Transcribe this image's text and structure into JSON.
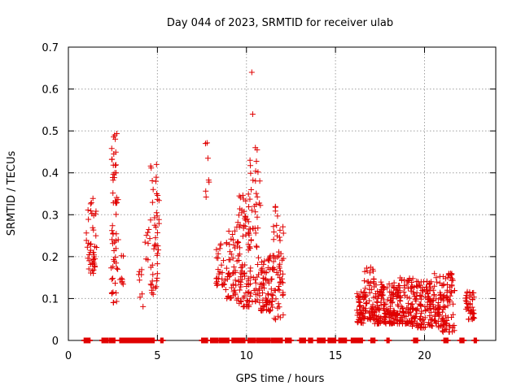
{
  "chart_data": {
    "type": "scatter",
    "title": "Day 044 of 2023, SRMTID for receiver ulab",
    "xlabel": "GPS time / hours",
    "ylabel": "SRMTID / TECUs",
    "xlim": [
      0,
      24
    ],
    "ylim": [
      0,
      0.7
    ],
    "xticks": [
      0,
      5,
      10,
      15,
      20
    ],
    "xtick_labels": [
      "0",
      "5",
      "10",
      "15",
      "20"
    ],
    "yticks": [
      0,
      0.1,
      0.2,
      0.3,
      0.4,
      0.5,
      0.6,
      0.7
    ],
    "ytick_labels": [
      "0",
      "0.1",
      "0.2",
      "0.3",
      "0.4",
      "0.5",
      "0.6",
      "0.7"
    ],
    "grid": true,
    "marker": "plus",
    "color": "#e00000",
    "clusters": [
      {
        "x": [
          1.0,
          1.6
        ],
        "y": [
          0.16,
          0.34
        ],
        "n": 45
      },
      {
        "x": [
          2.4,
          2.8
        ],
        "y": [
          0.09,
          0.495
        ],
        "n": 55
      },
      {
        "x": [
          2.9,
          3.1
        ],
        "y": [
          0.12,
          0.21
        ],
        "n": 8
      },
      {
        "x": [
          3.9,
          4.2
        ],
        "y": [
          0.08,
          0.17
        ],
        "n": 8
      },
      {
        "x": [
          4.3,
          4.6
        ],
        "y": [
          0.19,
          0.27
        ],
        "n": 8
      },
      {
        "x": [
          4.6,
          5.1
        ],
        "y": [
          0.11,
          0.42
        ],
        "n": 45
      },
      {
        "x": [
          7.6,
          7.9
        ],
        "y": [
          0.34,
          0.475
        ],
        "n": 6
      },
      {
        "x": [
          8.3,
          8.8
        ],
        "y": [
          0.13,
          0.24
        ],
        "n": 25
      },
      {
        "x": [
          8.8,
          9.4
        ],
        "y": [
          0.1,
          0.27
        ],
        "n": 45
      },
      {
        "x": [
          9.4,
          10.2
        ],
        "y": [
          0.08,
          0.35
        ],
        "n": 90
      },
      {
        "x": [
          10.2,
          10.8
        ],
        "y": [
          0.09,
          0.46
        ],
        "n": 55
      },
      {
        "x": [
          10.8,
          11.5
        ],
        "y": [
          0.07,
          0.21
        ],
        "n": 70
      },
      {
        "x": [
          11.5,
          12.1
        ],
        "y": [
          0.05,
          0.33
        ],
        "n": 55
      },
      {
        "x": [
          16.2,
          16.6
        ],
        "y": [
          0.04,
          0.12
        ],
        "n": 45
      },
      {
        "x": [
          16.6,
          17.2
        ],
        "y": [
          0.05,
          0.18
        ],
        "n": 60
      },
      {
        "x": [
          17.2,
          18.5
        ],
        "y": [
          0.04,
          0.14
        ],
        "n": 150
      },
      {
        "x": [
          18.5,
          19.3
        ],
        "y": [
          0.04,
          0.15
        ],
        "n": 80
      },
      {
        "x": [
          19.3,
          20.2
        ],
        "y": [
          0.03,
          0.15
        ],
        "n": 90
      },
      {
        "x": [
          20.2,
          21.0
        ],
        "y": [
          0.03,
          0.16
        ],
        "n": 80
      },
      {
        "x": [
          21.0,
          21.7
        ],
        "y": [
          0.02,
          0.16
        ],
        "n": 70
      },
      {
        "x": [
          22.3,
          22.8
        ],
        "y": [
          0.05,
          0.12
        ],
        "n": 40
      }
    ],
    "outliers": [
      {
        "x": 10.3,
        "y": 0.64
      },
      {
        "x": 10.35,
        "y": 0.54
      },
      {
        "x": 10.6,
        "y": 0.455
      },
      {
        "x": 10.5,
        "y": 0.46
      },
      {
        "x": 10.2,
        "y": 0.43
      },
      {
        "x": 2.6,
        "y": 0.49
      },
      {
        "x": 2.55,
        "y": 0.445
      },
      {
        "x": 4.95,
        "y": 0.42
      },
      {
        "x": 7.7,
        "y": 0.47
      },
      {
        "x": 9.6,
        "y": 0.345
      }
    ],
    "zero_segments": [
      [
        0.9,
        1.2
      ],
      [
        1.9,
        2.2
      ],
      [
        2.3,
        2.6
      ],
      [
        2.9,
        3.5
      ],
      [
        3.5,
        4.8
      ],
      [
        5.2,
        5.3
      ],
      [
        7.5,
        7.8
      ],
      [
        8.0,
        8.4
      ],
      [
        8.5,
        9.0
      ],
      [
        9.2,
        9.9
      ],
      [
        10.1,
        10.5
      ],
      [
        10.6,
        11.3
      ],
      [
        11.4,
        12.0
      ],
      [
        12.2,
        12.5
      ],
      [
        13.0,
        13.3
      ],
      [
        13.5,
        13.7
      ],
      [
        14.0,
        14.4
      ],
      [
        14.6,
        15.0
      ],
      [
        15.2,
        15.6
      ],
      [
        15.9,
        16.5
      ],
      [
        17.0,
        17.2
      ],
      [
        17.9,
        18.0
      ],
      [
        19.4,
        19.6
      ],
      [
        21.1,
        21.3
      ],
      [
        22.0,
        22.2
      ],
      [
        22.8,
        22.9
      ]
    ]
  }
}
